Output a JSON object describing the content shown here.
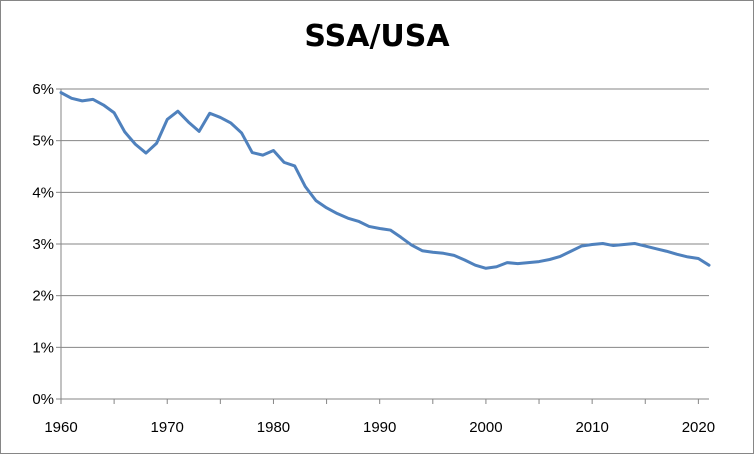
{
  "chart_data": {
    "type": "line",
    "title": "SSA/USA",
    "xlabel": "",
    "ylabel": "",
    "xlim": [
      1960,
      2021
    ],
    "ylim": [
      0,
      6
    ],
    "x_ticks": [
      1960,
      1970,
      1980,
      1990,
      2000,
      2010,
      2020
    ],
    "y_ticks": [
      {
        "value": 0,
        "label": "0%"
      },
      {
        "value": 1,
        "label": "1%"
      },
      {
        "value": 2,
        "label": "2%"
      },
      {
        "value": 3,
        "label": "3%"
      },
      {
        "value": 4,
        "label": "4%"
      },
      {
        "value": 5,
        "label": "5%"
      },
      {
        "value": 6,
        "label": "6%"
      }
    ],
    "grid": "horizontal",
    "legend": "none",
    "line_color": "#4f81bd",
    "x": [
      1960,
      1961,
      1962,
      1963,
      1964,
      1965,
      1966,
      1967,
      1968,
      1969,
      1970,
      1971,
      1972,
      1973,
      1974,
      1975,
      1976,
      1977,
      1978,
      1979,
      1980,
      1981,
      1982,
      1983,
      1984,
      1985,
      1986,
      1987,
      1988,
      1989,
      1990,
      1991,
      1992,
      1993,
      1994,
      1995,
      1996,
      1997,
      1998,
      1999,
      2000,
      2001,
      2002,
      2003,
      2004,
      2005,
      2006,
      2007,
      2008,
      2009,
      2010,
      2011,
      2012,
      2013,
      2014,
      2015,
      2016,
      2017,
      2018,
      2019,
      2020,
      2021
    ],
    "series": [
      {
        "values": [
          5.93,
          5.82,
          5.77,
          5.8,
          5.69,
          5.54,
          5.17,
          4.93,
          4.76,
          4.95,
          5.41,
          5.57,
          5.36,
          5.18,
          5.53,
          5.45,
          5.34,
          5.15,
          4.77,
          4.72,
          4.81,
          4.58,
          4.51,
          4.11,
          3.84,
          3.7,
          3.59,
          3.5,
          3.44,
          3.34,
          3.3,
          3.27,
          3.13,
          2.98,
          2.87,
          2.84,
          2.82,
          2.78,
          2.69,
          2.59,
          2.53,
          2.56,
          2.64,
          2.62,
          2.64,
          2.66,
          2.7,
          2.76,
          2.86,
          2.96,
          2.99,
          3.01,
          2.97,
          2.99,
          3.01,
          2.96,
          2.91,
          2.86,
          2.8,
          2.75,
          2.72,
          2.59
        ]
      }
    ]
  }
}
